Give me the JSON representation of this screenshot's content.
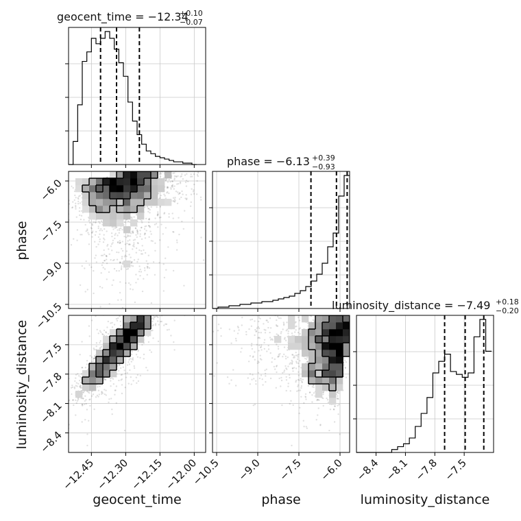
{
  "chart_data": {
    "type": "corner",
    "parameters": [
      {
        "name": "geocent_time",
        "axis_label": "geocent_time",
        "range": [
          -12.55,
          -11.95
        ],
        "ticks": [
          -12.45,
          -12.3,
          -12.15,
          -12.0
        ],
        "tick_labels": [
          "−12.45",
          "−12.30",
          "−12.15",
          "−12.00"
        ],
        "title": {
          "main": "geocent_time = −12.34",
          "plus": "+0.10",
          "minus": "−0.07"
        },
        "quantiles": [
          -12.41,
          -12.34,
          -12.24
        ],
        "hist_bin_edges": [
          -12.55,
          -12.53,
          -12.51,
          -12.49,
          -12.47,
          -12.45,
          -12.43,
          -12.41,
          -12.39,
          -12.37,
          -12.35,
          -12.33,
          -12.31,
          -12.29,
          -12.27,
          -12.25,
          -12.23,
          -12.21,
          -12.19,
          -12.17,
          -12.15,
          -12.13,
          -12.11,
          -12.09,
          -12.07,
          -12.05,
          -12.03,
          -12.01,
          -11.99
        ],
        "hist_counts": [
          0.0,
          0.17,
          0.44,
          0.76,
          0.83,
          0.93,
          0.89,
          0.93,
          0.98,
          0.93,
          0.85,
          0.75,
          0.65,
          0.46,
          0.32,
          0.22,
          0.15,
          0.1,
          0.08,
          0.06,
          0.05,
          0.04,
          0.03,
          0.02,
          0.02,
          0.01,
          0.01,
          0.0
        ]
      },
      {
        "name": "phase",
        "axis_label": "phase",
        "range": [
          -10.65,
          -5.65
        ],
        "ticks": [
          -10.5,
          -9.0,
          -7.5,
          -6.0
        ],
        "tick_labels": [
          "−10.5",
          "−9.0",
          "−7.5",
          "−6.0"
        ],
        "title": {
          "main": "phase = −6.13",
          "plus": "+0.39",
          "minus": "−0.93"
        },
        "quantiles": [
          -7.06,
          -6.13,
          -5.74
        ],
        "hist_bin_edges": [
          -10.65,
          -10.45,
          -10.25,
          -10.05,
          -9.85,
          -9.65,
          -9.45,
          -9.25,
          -9.05,
          -8.85,
          -8.65,
          -8.45,
          -8.25,
          -8.05,
          -7.85,
          -7.65,
          -7.45,
          -7.25,
          -7.05,
          -6.85,
          -6.65,
          -6.45,
          -6.25,
          -6.05,
          -5.85,
          -5.65
        ],
        "hist_counts": [
          0.0,
          0.01,
          0.01,
          0.02,
          0.02,
          0.03,
          0.03,
          0.04,
          0.04,
          0.05,
          0.05,
          0.06,
          0.07,
          0.08,
          0.09,
          0.11,
          0.13,
          0.16,
          0.2,
          0.25,
          0.33,
          0.45,
          0.55,
          0.82,
          0.97
        ]
      },
      {
        "name": "luminosity_distance",
        "axis_label": "luminosity_distance",
        "range": [
          -8.6,
          -7.2
        ],
        "ticks": [
          -8.4,
          -8.1,
          -7.8,
          -7.5
        ],
        "tick_labels": [
          "−8.4",
          "−8.1",
          "−7.8",
          "−7.5"
        ],
        "title": {
          "main": "luminosity_distance = −7.49",
          "plus": "+0.18",
          "minus": "−0.20"
        },
        "quantiles": [
          -7.7,
          -7.49,
          -7.3
        ],
        "hist_bin_edges": [
          -8.6,
          -8.54,
          -8.48,
          -8.42,
          -8.36,
          -8.3,
          -8.24,
          -8.18,
          -8.12,
          -8.06,
          -8.0,
          -7.94,
          -7.88,
          -7.82,
          -7.76,
          -7.7,
          -7.64,
          -7.58,
          -7.52,
          -7.46,
          -7.4,
          -7.34,
          -7.28,
          -7.22
        ],
        "hist_counts": [
          0.0,
          0.0,
          0.0,
          0.0,
          0.0,
          0.0,
          0.02,
          0.04,
          0.06,
          0.1,
          0.18,
          0.27,
          0.38,
          0.55,
          0.63,
          0.68,
          0.56,
          0.54,
          0.52,
          0.55,
          0.8,
          0.92,
          0.7
        ]
      }
    ],
    "grid": true,
    "quantile_style": "dashed-black"
  }
}
